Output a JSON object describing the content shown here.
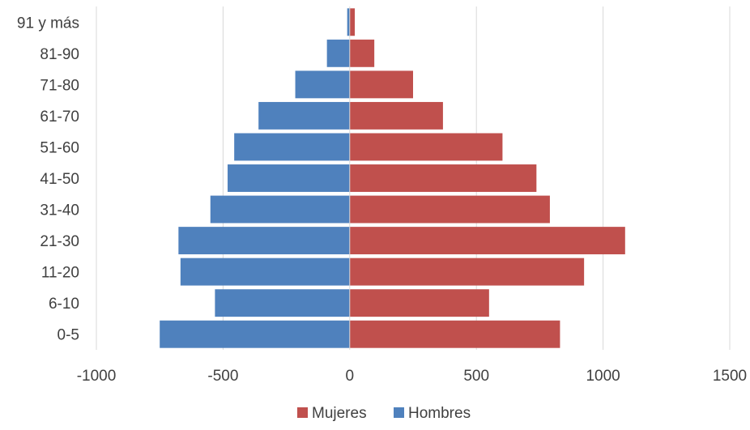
{
  "chart_data": {
    "type": "bar",
    "orientation": "horizontal",
    "layout": "population-pyramid",
    "title": "",
    "xlabel": "",
    "ylabel": "",
    "categories": [
      "0-5",
      "6-10",
      "11-20",
      "21-30",
      "31-40",
      "41-50",
      "51-60",
      "61-70",
      "71-80",
      "81-90",
      "91 y más"
    ],
    "series": [
      {
        "name": "Mujeres",
        "color": "#c0504d",
        "values": [
          830,
          550,
          925,
          1087,
          790,
          737,
          603,
          368,
          250,
          97,
          20
        ]
      },
      {
        "name": "Hombres",
        "color": "#4f81bd",
        "values": [
          -750,
          -532,
          -668,
          -676,
          -550,
          -482,
          -456,
          -360,
          -215,
          -90,
          -10
        ]
      }
    ],
    "xlim": [
      -1000,
      1500
    ],
    "xticks": [
      -1000,
      -500,
      0,
      500,
      1000,
      1500
    ],
    "xtick_labels": [
      "-1000",
      "-500",
      "0",
      "500",
      "1000",
      "1500"
    ],
    "grid": "vertical",
    "legend_position": "bottom"
  }
}
